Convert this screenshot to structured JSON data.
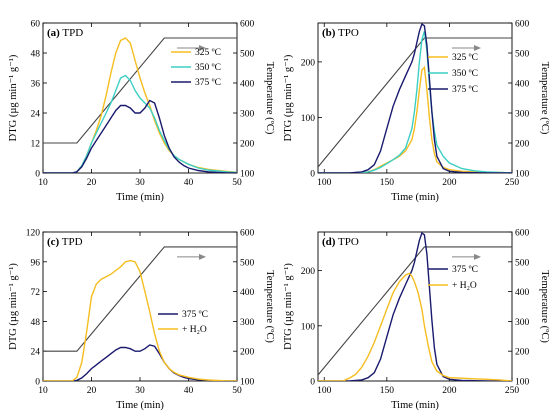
{
  "chart_data": [
    {
      "type": "line",
      "panel_label": "(a)",
      "panel_title": "TPD",
      "xlabel": "Time (min)",
      "ylabel": "DTG (µg min⁻¹ g⁻¹)",
      "y2label": "Temperature (ºC)",
      "xlim": [
        10,
        50
      ],
      "ylim": [
        0,
        60
      ],
      "y2lim": [
        100,
        600
      ],
      "xticks": [
        10,
        20,
        30,
        40,
        50
      ],
      "yticks": [
        0,
        12,
        24,
        36,
        48,
        60
      ],
      "y2ticks": [
        100,
        200,
        300,
        400,
        500,
        600
      ],
      "legend_position": "top-right",
      "temperature_profile": [
        [
          10,
          200
        ],
        [
          17,
          200
        ],
        [
          35,
          550
        ],
        [
          50,
          550
        ]
      ],
      "series": [
        {
          "name": "325 ºC",
          "color": "#f5bd1f",
          "x": [
            10,
            16,
            17,
            18,
            19,
            20,
            21,
            22,
            23,
            24,
            25,
            26,
            27,
            28,
            29,
            30,
            31,
            32,
            33,
            34,
            35,
            36,
            37,
            38,
            39,
            40,
            42,
            44,
            46,
            48,
            50
          ],
          "y": [
            0,
            0,
            0.5,
            3,
            7,
            12,
            17,
            23,
            31,
            40,
            48,
            53,
            54,
            52,
            45,
            38,
            32,
            27,
            21,
            16,
            12,
            9,
            7,
            5.5,
            4.5,
            3.5,
            2.2,
            1.5,
            1,
            0.6,
            0.3
          ]
        },
        {
          "name": "350 ºC",
          "color": "#3ccfc4",
          "x": [
            10,
            16,
            17,
            18,
            19,
            20,
            21,
            22,
            23,
            24,
            25,
            26,
            27,
            28,
            29,
            30,
            31,
            32,
            33,
            34,
            35,
            36,
            37,
            38,
            39,
            40,
            42,
            44,
            46,
            48,
            50
          ],
          "y": [
            0,
            0,
            0.5,
            3,
            7,
            12,
            16,
            20,
            24,
            28,
            33,
            38,
            39,
            37,
            33,
            30,
            28,
            26,
            22,
            17,
            13,
            9.5,
            7,
            5.5,
            4.5,
            3.5,
            2,
            1.2,
            0.8,
            0.4,
            0.2
          ]
        },
        {
          "name": "375 ºC",
          "color": "#1a1a6e",
          "x": [
            10,
            16,
            17,
            18,
            19,
            20,
            21,
            22,
            23,
            24,
            25,
            26,
            27,
            28,
            29,
            30,
            31,
            32,
            33,
            34,
            35,
            36,
            37,
            38,
            39,
            40,
            42,
            44,
            46,
            48,
            50
          ],
          "y": [
            0,
            0,
            0.5,
            2.5,
            6,
            10,
            13,
            16,
            19,
            22,
            25,
            27,
            27,
            26,
            24,
            24,
            26,
            29,
            28,
            22,
            15,
            10,
            6.5,
            4.5,
            3,
            2,
            1,
            0.5,
            0.2,
            0,
            0
          ]
        }
      ]
    },
    {
      "type": "line",
      "panel_label": "(b)",
      "panel_title": "TPO",
      "xlabel": "Time (min)",
      "ylabel": "DTG (µg min⁻¹ g⁻¹)",
      "y2label": "Temperature (ºC)",
      "xlim": [
        95,
        250
      ],
      "ylim": [
        0,
        270
      ],
      "y2lim": [
        100,
        600
      ],
      "xticks": [
        100,
        150,
        200,
        250
      ],
      "yticks": [
        0,
        100,
        200
      ],
      "y2ticks": [
        100,
        200,
        300,
        400,
        500,
        600
      ],
      "legend_position": "right",
      "temperature_profile": [
        [
          95,
          120
        ],
        [
          180,
          550
        ],
        [
          250,
          550
        ]
      ],
      "series": [
        {
          "name": "325 ºC",
          "color": "#f5bd1f",
          "x": [
            95,
            120,
            135,
            140,
            145,
            150,
            155,
            160,
            165,
            170,
            172,
            174,
            176,
            178,
            180,
            182,
            184,
            186,
            188,
            190,
            195,
            200,
            210,
            220,
            230,
            240,
            250
          ],
          "y": [
            0,
            0,
            2,
            6,
            12,
            18,
            24,
            30,
            40,
            60,
            80,
            110,
            150,
            185,
            190,
            150,
            100,
            60,
            35,
            20,
            10,
            6,
            3,
            2,
            1,
            1,
            0
          ]
        },
        {
          "name": "350 ºC",
          "color": "#3ccfc4",
          "x": [
            95,
            120,
            135,
            140,
            145,
            150,
            155,
            160,
            165,
            170,
            172,
            174,
            176,
            178,
            180,
            182,
            184,
            186,
            188,
            190,
            195,
            200,
            210,
            220,
            230,
            240,
            250
          ],
          "y": [
            0,
            0,
            2,
            5,
            10,
            17,
            24,
            32,
            45,
            80,
            110,
            150,
            200,
            240,
            255,
            220,
            160,
            110,
            75,
            50,
            30,
            18,
            8,
            4,
            2,
            1,
            0
          ]
        },
        {
          "name": "375 ºC",
          "color": "#1a1a6e",
          "x": [
            95,
            120,
            130,
            135,
            140,
            145,
            150,
            155,
            160,
            165,
            170,
            172,
            174,
            176,
            178,
            180,
            182,
            184,
            186,
            188,
            190,
            195,
            200,
            210,
            230,
            250
          ],
          "y": [
            0,
            0,
            2,
            6,
            15,
            40,
            80,
            120,
            150,
            175,
            200,
            215,
            235,
            255,
            268,
            265,
            230,
            170,
            110,
            60,
            30,
            8,
            3,
            1,
            0,
            0
          ]
        }
      ]
    },
    {
      "type": "line",
      "panel_label": "(c)",
      "panel_title": "TPD",
      "xlabel": "Time (min)",
      "ylabel": "DTG (µg min⁻¹ g⁻¹)",
      "y2label": "Temperature (ºC)",
      "xlim": [
        10,
        50
      ],
      "ylim": [
        0,
        120
      ],
      "y2lim": [
        100,
        600
      ],
      "xticks": [
        10,
        20,
        30,
        40,
        50
      ],
      "yticks": [
        0,
        24,
        48,
        72,
        96,
        120
      ],
      "y2ticks": [
        100,
        200,
        300,
        400,
        500,
        600
      ],
      "legend_position": "center-right",
      "temperature_profile": [
        [
          10,
          200
        ],
        [
          17,
          200
        ],
        [
          35,
          550
        ],
        [
          50,
          550
        ]
      ],
      "series": [
        {
          "name": "375 ºC",
          "color": "#1a1a6e",
          "x": [
            10,
            16,
            17,
            18,
            19,
            20,
            21,
            22,
            23,
            24,
            25,
            26,
            27,
            28,
            29,
            30,
            31,
            32,
            33,
            34,
            35,
            36,
            37,
            38,
            39,
            40,
            42,
            44,
            46,
            48,
            50
          ],
          "y": [
            0,
            0,
            0.5,
            2.5,
            6,
            10,
            13,
            16,
            19,
            22,
            25,
            27,
            27,
            26,
            24,
            24,
            26,
            29,
            28,
            22,
            15,
            10,
            6.5,
            4.5,
            3,
            2,
            1,
            0.5,
            0.2,
            0,
            0
          ]
        },
        {
          "name": "+ H₂O",
          "color": "#f5bd1f",
          "x": [
            10,
            16,
            17,
            18,
            19,
            20,
            21,
            22,
            23,
            24,
            25,
            26,
            27,
            28,
            29,
            30,
            31,
            32,
            33,
            34,
            35,
            36,
            37,
            38,
            40,
            42,
            44,
            46,
            48,
            50
          ],
          "y": [
            0,
            0,
            3,
            15,
            40,
            68,
            78,
            82,
            84,
            86,
            89,
            92,
            96,
            97,
            96,
            88,
            72,
            56,
            38,
            24,
            15,
            10,
            7,
            5,
            3,
            1.5,
            0.8,
            0.4,
            0,
            0
          ]
        }
      ]
    },
    {
      "type": "line",
      "panel_label": "(d)",
      "panel_title": "TPO",
      "xlabel": "Time (min)",
      "ylabel": "DTG (µg min⁻¹ g⁻¹)",
      "y2label": "Temperature (ºC)",
      "xlim": [
        95,
        250
      ],
      "ylim": [
        0,
        270
      ],
      "y2lim": [
        100,
        600
      ],
      "xticks": [
        100,
        150,
        200,
        250
      ],
      "yticks": [
        0,
        100,
        200
      ],
      "y2ticks": [
        100,
        200,
        300,
        400,
        500,
        600
      ],
      "legend_position": "center-right",
      "temperature_profile": [
        [
          95,
          120
        ],
        [
          180,
          550
        ],
        [
          250,
          550
        ]
      ],
      "series": [
        {
          "name": "375 ºC",
          "color": "#1a1a6e",
          "x": [
            95,
            120,
            130,
            135,
            140,
            145,
            150,
            155,
            160,
            165,
            170,
            172,
            174,
            176,
            178,
            180,
            182,
            184,
            186,
            188,
            190,
            195,
            200,
            210,
            230,
            250
          ],
          "y": [
            0,
            0,
            2,
            6,
            15,
            40,
            80,
            120,
            150,
            175,
            200,
            215,
            235,
            255,
            268,
            265,
            230,
            170,
            110,
            60,
            30,
            8,
            3,
            1,
            0,
            0
          ]
        },
        {
          "name": "+ H₂O",
          "color": "#f5bd1f",
          "x": [
            95,
            115,
            120,
            125,
            130,
            135,
            140,
            145,
            150,
            155,
            160,
            165,
            168,
            170,
            172,
            175,
            178,
            180,
            183,
            186,
            190,
            195,
            200,
            210,
            220,
            230,
            240,
            250
          ],
          "y": [
            0,
            0,
            5,
            12,
            25,
            45,
            70,
            100,
            130,
            160,
            180,
            192,
            195,
            190,
            180,
            160,
            130,
            100,
            65,
            35,
            18,
            10,
            6,
            5,
            4,
            3,
            2,
            0
          ]
        }
      ]
    }
  ]
}
